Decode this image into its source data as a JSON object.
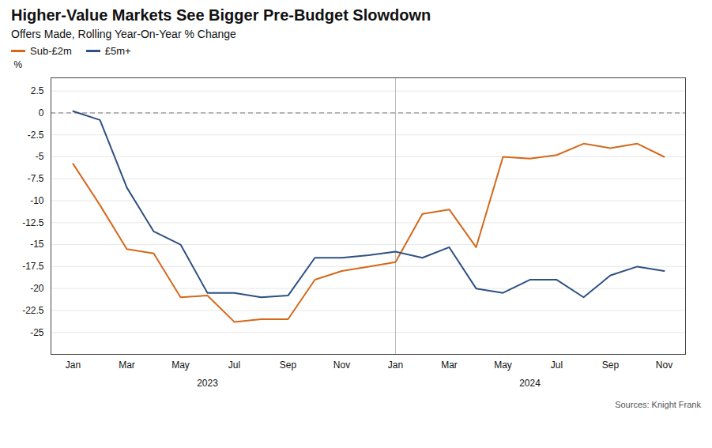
{
  "chart_data": {
    "type": "line",
    "title": "Higher-Value Markets See Bigger Pre-Budget Slowdown",
    "subtitle": "Offers Made, Rolling Year-On-Year % Change",
    "ylabel": "%",
    "categories": [
      "Jan",
      null,
      "Mar",
      null,
      "May",
      null,
      "Jul",
      null,
      "Sep",
      null,
      "Nov",
      null,
      "Jan",
      null,
      "Mar",
      null,
      "May",
      null,
      "Jul",
      null,
      "Sep",
      null,
      "Nov"
    ],
    "series": [
      {
        "name": "Sub-£2m",
        "color": "#d4691c",
        "values": [
          -5.8,
          -10.5,
          -15.5,
          -16.0,
          -21.0,
          -20.8,
          -23.8,
          -23.5,
          -23.5,
          -19.0,
          -18.0,
          -17.5,
          -17.0,
          -11.5,
          -11.0,
          -15.3,
          -5.0,
          -5.2,
          -4.8,
          -3.5,
          -4.0,
          -3.5,
          -5.0
        ]
      },
      {
        "name": "£5m+",
        "color": "#2f5082",
        "values": [
          0.2,
          -0.8,
          -8.5,
          -13.5,
          -15.0,
          -20.5,
          -20.5,
          -21.0,
          -20.8,
          -16.5,
          -16.5,
          -16.2,
          -15.8,
          -16.5,
          -15.3,
          -20.0,
          -20.5,
          -19.0,
          -19.0,
          -21.0,
          -18.5,
          -17.5,
          -18.0
        ]
      }
    ],
    "ylim": [
      -27.5,
      4.0
    ],
    "yticks": [
      2.5,
      0,
      -2.5,
      -5,
      -7.5,
      -10,
      -12.5,
      -15,
      -17.5,
      -20,
      -22.5,
      -25
    ],
    "grid": true,
    "legend": "top",
    "annotations": [
      {
        "text": "2023",
        "x": 5
      },
      {
        "text": "2024",
        "x": 17
      }
    ],
    "source": "Sources: Knight Frank"
  }
}
